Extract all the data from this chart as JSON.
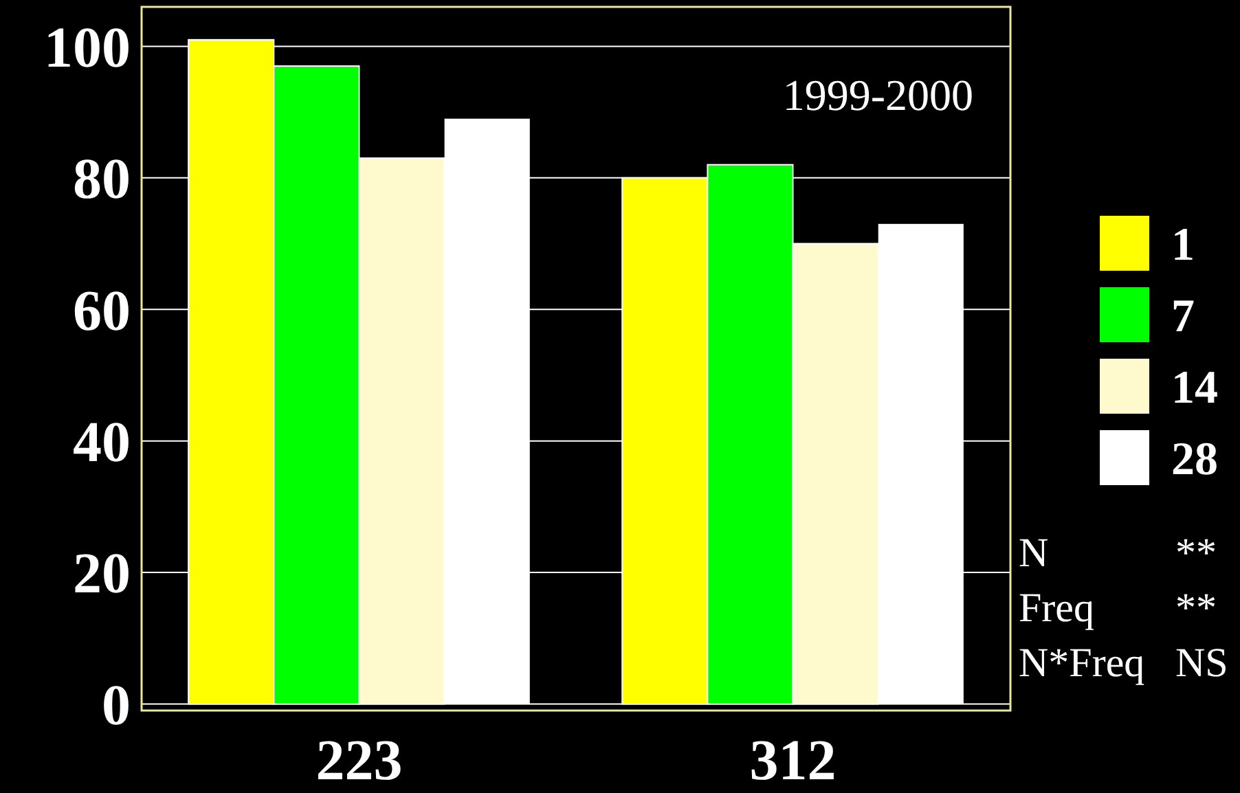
{
  "chart_data": {
    "type": "bar",
    "categories": [
      "223",
      "312"
    ],
    "series": [
      {
        "name": "1",
        "color": "#ffff00",
        "values": [
          101,
          80
        ]
      },
      {
        "name": "7",
        "color": "#00ff00",
        "values": [
          97,
          82
        ]
      },
      {
        "name": "14",
        "color": "#fffacd",
        "values": [
          83,
          70
        ]
      },
      {
        "name": "28",
        "color": "#ffffff",
        "values": [
          89,
          73
        ]
      }
    ],
    "ylim": [
      -1,
      106
    ],
    "yticks": [
      0,
      20,
      40,
      60,
      80,
      100
    ],
    "grid": "y",
    "legend": "right",
    "annotations": [
      "1999-2000",
      "N **",
      "Freq **",
      "N*Freq NS"
    ]
  }
}
